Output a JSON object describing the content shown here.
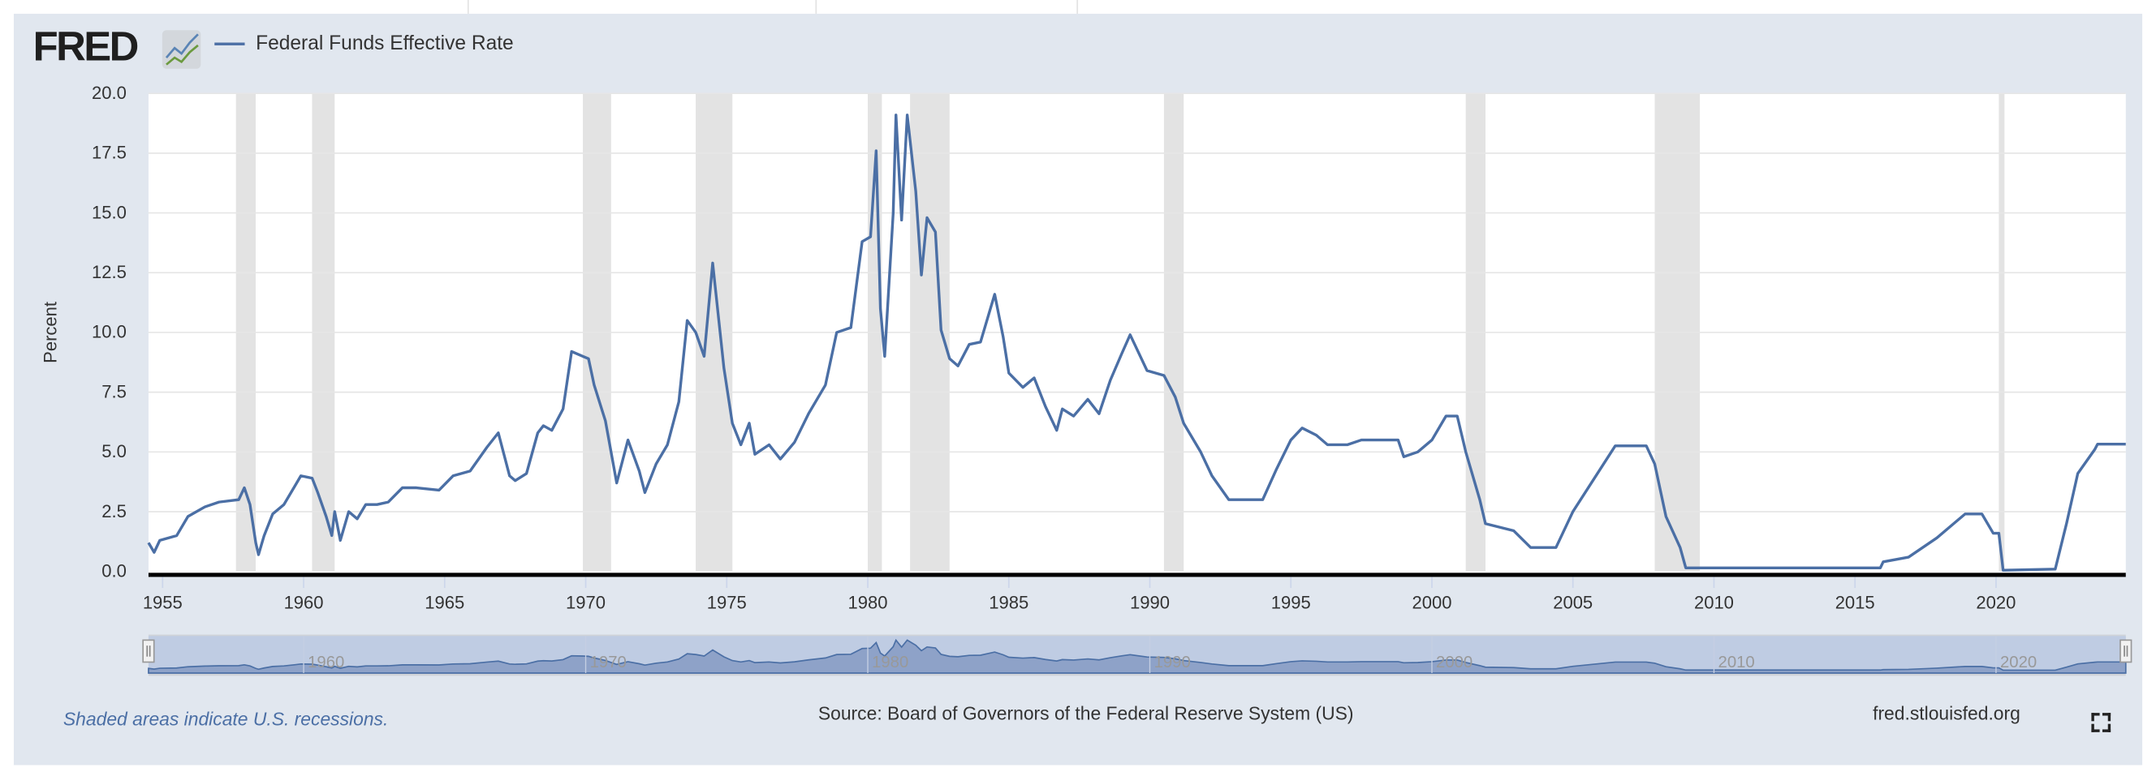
{
  "header": {
    "logo_text": "FRED",
    "logo_icon": "line-chart-icon",
    "legend_label": "Federal Funds Effective Rate"
  },
  "footer": {
    "recession_note": "Shaded areas indicate U.S. recessions.",
    "source": "Source: Board of Governors of the Federal Reserve System (US)",
    "site": "fred.stlouisfed.org",
    "fullscreen_icon": "fullscreen-icon"
  },
  "colors": {
    "series": "#4b6fa5",
    "panel": "#e1e7ef",
    "recession": "#e3e3e3",
    "navigator_fill": "#bfcce3",
    "navigator_area": "#8ea2c8"
  },
  "chart_data": {
    "type": "line",
    "title": "",
    "xlabel": "",
    "ylabel": "Percent",
    "ylim": [
      0,
      20
    ],
    "xlim": [
      1954.5,
      2024.6
    ],
    "y_ticks": [
      "0.0",
      "2.5",
      "5.0",
      "7.5",
      "10.0",
      "12.5",
      "15.0",
      "17.5",
      "20.0"
    ],
    "x_ticks": [
      "1955",
      "1960",
      "1965",
      "1970",
      "1975",
      "1980",
      "1985",
      "1990",
      "1995",
      "2000",
      "2005",
      "2010",
      "2015",
      "2020"
    ],
    "navigator_ticks": [
      "1960",
      "1970",
      "1980",
      "1990",
      "2000",
      "2010",
      "2020"
    ],
    "grid": "horizontal",
    "legend": "top-left",
    "recessions": [
      [
        1957.6,
        1958.3
      ],
      [
        1960.3,
        1961.1
      ],
      [
        1969.9,
        1970.9
      ],
      [
        1973.9,
        1975.2
      ],
      [
        1980.0,
        1980.5
      ],
      [
        1981.5,
        1982.9
      ],
      [
        1990.5,
        1991.2
      ],
      [
        2001.2,
        2001.9
      ],
      [
        2007.9,
        2009.5
      ],
      [
        2020.1,
        2020.3
      ]
    ],
    "series": [
      {
        "name": "Federal Funds Effective Rate",
        "points": [
          [
            1954.5,
            1.2
          ],
          [
            1954.7,
            0.8
          ],
          [
            1954.9,
            1.3
          ],
          [
            1955.5,
            1.5
          ],
          [
            1955.9,
            2.3
          ],
          [
            1956.5,
            2.7
          ],
          [
            1957.0,
            2.9
          ],
          [
            1957.7,
            3.0
          ],
          [
            1957.9,
            3.5
          ],
          [
            1958.1,
            2.8
          ],
          [
            1958.3,
            1.2
          ],
          [
            1958.4,
            0.7
          ],
          [
            1958.6,
            1.5
          ],
          [
            1958.9,
            2.4
          ],
          [
            1959.3,
            2.8
          ],
          [
            1959.7,
            3.6
          ],
          [
            1959.9,
            4.0
          ],
          [
            1960.3,
            3.9
          ],
          [
            1960.5,
            3.3
          ],
          [
            1960.8,
            2.3
          ],
          [
            1961.0,
            1.5
          ],
          [
            1961.1,
            2.5
          ],
          [
            1961.3,
            1.3
          ],
          [
            1961.6,
            2.5
          ],
          [
            1961.9,
            2.2
          ],
          [
            1962.2,
            2.8
          ],
          [
            1962.6,
            2.8
          ],
          [
            1963.0,
            2.9
          ],
          [
            1963.5,
            3.5
          ],
          [
            1964.0,
            3.5
          ],
          [
            1964.8,
            3.4
          ],
          [
            1965.3,
            4.0
          ],
          [
            1965.9,
            4.2
          ],
          [
            1966.5,
            5.2
          ],
          [
            1966.9,
            5.8
          ],
          [
            1967.3,
            4.0
          ],
          [
            1967.5,
            3.8
          ],
          [
            1967.9,
            4.1
          ],
          [
            1968.3,
            5.8
          ],
          [
            1968.5,
            6.1
          ],
          [
            1968.8,
            5.9
          ],
          [
            1969.2,
            6.8
          ],
          [
            1969.5,
            9.2
          ],
          [
            1969.9,
            9.0
          ],
          [
            1970.1,
            8.9
          ],
          [
            1970.3,
            7.8
          ],
          [
            1970.7,
            6.3
          ],
          [
            1970.9,
            5.0
          ],
          [
            1971.1,
            3.7
          ],
          [
            1971.5,
            5.5
          ],
          [
            1971.9,
            4.2
          ],
          [
            1972.1,
            3.3
          ],
          [
            1972.5,
            4.5
          ],
          [
            1972.9,
            5.3
          ],
          [
            1973.3,
            7.1
          ],
          [
            1973.6,
            10.5
          ],
          [
            1973.9,
            10.0
          ],
          [
            1974.2,
            9.0
          ],
          [
            1974.5,
            12.9
          ],
          [
            1974.9,
            8.5
          ],
          [
            1975.2,
            6.2
          ],
          [
            1975.5,
            5.3
          ],
          [
            1975.8,
            6.2
          ],
          [
            1976.0,
            4.9
          ],
          [
            1976.5,
            5.3
          ],
          [
            1976.9,
            4.7
          ],
          [
            1977.4,
            5.4
          ],
          [
            1977.9,
            6.6
          ],
          [
            1978.5,
            7.8
          ],
          [
            1978.9,
            10.0
          ],
          [
            1979.4,
            10.2
          ],
          [
            1979.8,
            13.8
          ],
          [
            1980.1,
            14.0
          ],
          [
            1980.3,
            17.6
          ],
          [
            1980.45,
            11.0
          ],
          [
            1980.6,
            9.0
          ],
          [
            1980.9,
            15.0
          ],
          [
            1981.0,
            19.1
          ],
          [
            1981.2,
            14.7
          ],
          [
            1981.4,
            19.1
          ],
          [
            1981.7,
            15.9
          ],
          [
            1981.9,
            12.4
          ],
          [
            1982.1,
            14.8
          ],
          [
            1982.4,
            14.2
          ],
          [
            1982.6,
            10.1
          ],
          [
            1982.9,
            8.9
          ],
          [
            1983.2,
            8.6
          ],
          [
            1983.6,
            9.5
          ],
          [
            1984.0,
            9.6
          ],
          [
            1984.5,
            11.6
          ],
          [
            1984.8,
            9.8
          ],
          [
            1985.0,
            8.3
          ],
          [
            1985.5,
            7.7
          ],
          [
            1985.9,
            8.1
          ],
          [
            1986.3,
            6.9
          ],
          [
            1986.7,
            5.9
          ],
          [
            1986.9,
            6.8
          ],
          [
            1987.3,
            6.5
          ],
          [
            1987.8,
            7.2
          ],
          [
            1988.2,
            6.6
          ],
          [
            1988.6,
            8.0
          ],
          [
            1989.0,
            9.1
          ],
          [
            1989.3,
            9.9
          ],
          [
            1989.9,
            8.4
          ],
          [
            1990.5,
            8.2
          ],
          [
            1990.9,
            7.3
          ],
          [
            1991.2,
            6.2
          ],
          [
            1991.8,
            5.0
          ],
          [
            1992.2,
            4.0
          ],
          [
            1992.8,
            3.0
          ],
          [
            1993.5,
            3.0
          ],
          [
            1994.0,
            3.0
          ],
          [
            1994.5,
            4.3
          ],
          [
            1995.0,
            5.5
          ],
          [
            1995.4,
            6.0
          ],
          [
            1995.9,
            5.7
          ],
          [
            1996.3,
            5.3
          ],
          [
            1997.0,
            5.3
          ],
          [
            1997.5,
            5.5
          ],
          [
            1998.8,
            5.5
          ],
          [
            1999.0,
            4.8
          ],
          [
            1999.5,
            5.0
          ],
          [
            2000.0,
            5.5
          ],
          [
            2000.5,
            6.5
          ],
          [
            2000.9,
            6.5
          ],
          [
            2001.2,
            5.0
          ],
          [
            2001.7,
            3.0
          ],
          [
            2001.9,
            2.0
          ],
          [
            2002.9,
            1.7
          ],
          [
            2003.5,
            1.0
          ],
          [
            2004.4,
            1.0
          ],
          [
            2005.0,
            2.5
          ],
          [
            2006.5,
            5.25
          ],
          [
            2007.6,
            5.25
          ],
          [
            2007.9,
            4.5
          ],
          [
            2008.3,
            2.3
          ],
          [
            2008.8,
            1.0
          ],
          [
            2009.0,
            0.15
          ],
          [
            2010.0,
            0.15
          ],
          [
            2015.9,
            0.15
          ],
          [
            2016.0,
            0.4
          ],
          [
            2016.9,
            0.6
          ],
          [
            2017.9,
            1.4
          ],
          [
            2018.9,
            2.4
          ],
          [
            2019.5,
            2.4
          ],
          [
            2019.9,
            1.6
          ],
          [
            2020.1,
            1.6
          ],
          [
            2020.25,
            0.05
          ],
          [
            2022.1,
            0.1
          ],
          [
            2022.5,
            2.0
          ],
          [
            2022.9,
            4.1
          ],
          [
            2023.5,
            5.1
          ],
          [
            2023.6,
            5.33
          ],
          [
            2024.6,
            5.33
          ]
        ]
      }
    ]
  }
}
